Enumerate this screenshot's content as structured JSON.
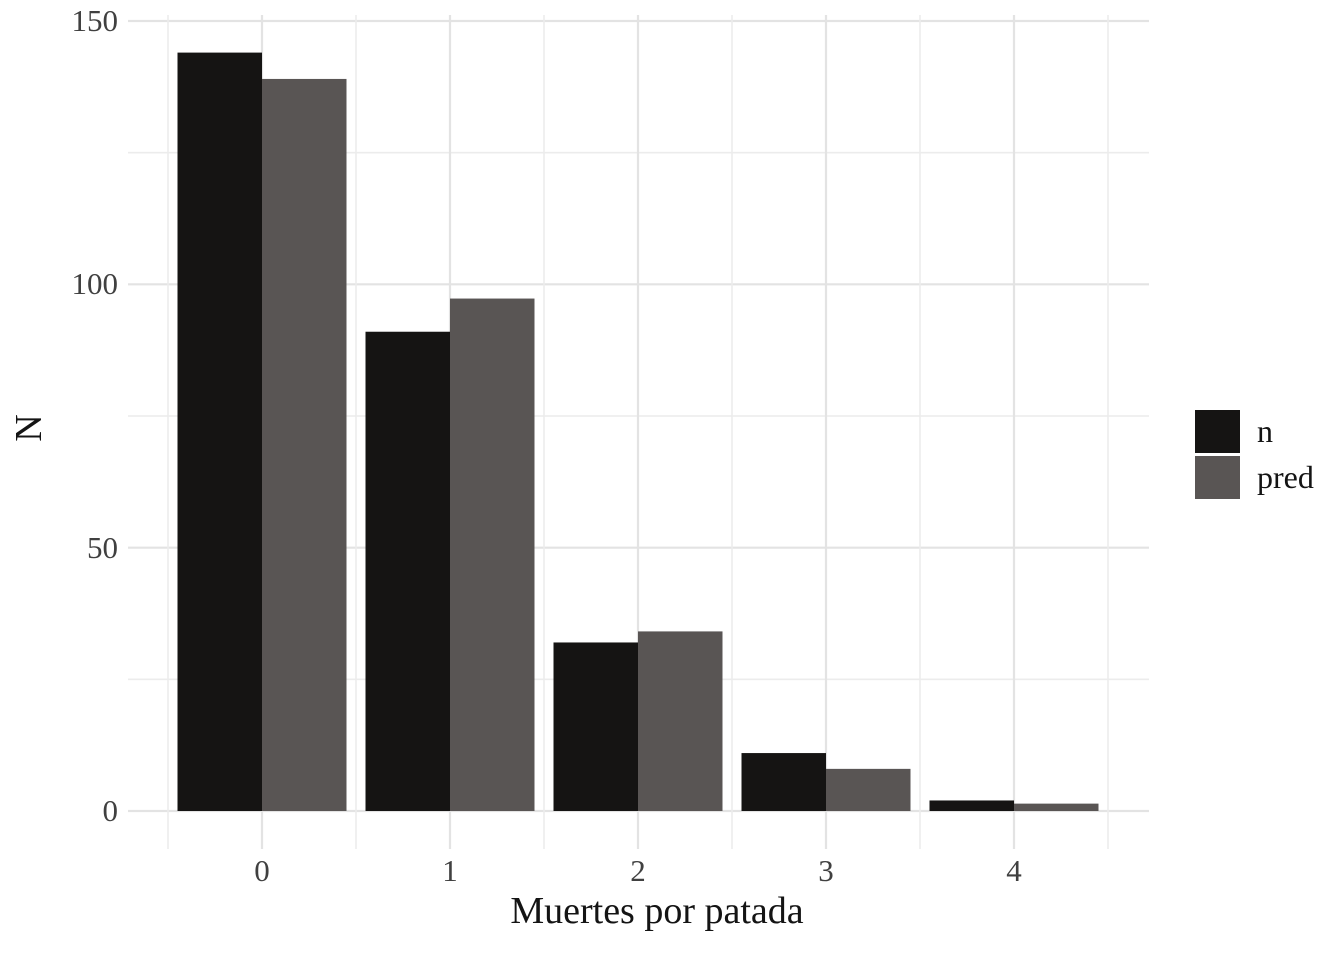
{
  "chart_data": {
    "type": "bar",
    "title": "",
    "xlabel": "Muertes por patada",
    "ylabel": "N",
    "categories": [
      "0",
      "1",
      "2",
      "3",
      "4"
    ],
    "series": [
      {
        "name": "n",
        "color": "#151413",
        "values": [
          144,
          91,
          32,
          11,
          2
        ]
      },
      {
        "name": "pred",
        "color": "#595554",
        "values": [
          139,
          97.3,
          34.1,
          8,
          1.4
        ]
      }
    ],
    "ylim": [
      0,
      150
    ],
    "yticks": [
      0,
      50,
      100,
      150
    ],
    "ytick_labels": [
      "0",
      "50",
      "100",
      "150"
    ],
    "yticks_minor": [
      25,
      75,
      125
    ],
    "grid": true,
    "bar_layout": "dodged",
    "legend_position": "right",
    "colors": {
      "background": "#ffffff",
      "grid_major": "#e3e3e3",
      "grid_minor": "#ececec",
      "axis_text": "#404040",
      "axis_title": "#141414"
    }
  },
  "legend": {
    "items": [
      {
        "label": "n",
        "color": "#151413"
      },
      {
        "label": "pred",
        "color": "#595554"
      }
    ]
  }
}
